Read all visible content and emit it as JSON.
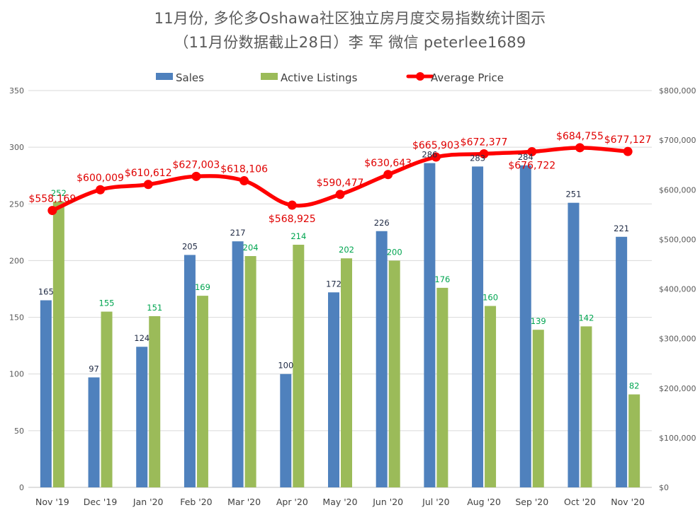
{
  "chart_data": {
    "type": "bar",
    "title_lines": [
      "11月份, 多伦多Oshawa社区独立房月度交易指数统计图示",
      "（11月份数据截止28日）李 军  微信  peterlee1689"
    ],
    "categories": [
      "Nov '19",
      "Dec '19",
      "Jan '20",
      "Feb '20",
      "Mar '20",
      "Apr '20",
      "May '20",
      "Jun '20",
      "Jul '20",
      "Aug '20",
      "Sep '20",
      "Oct '20",
      "Nov '20"
    ],
    "series": [
      {
        "name": "Sales",
        "type": "bar",
        "axis": "left",
        "color": "#4F81BD",
        "label_color": "#1F2A44",
        "values": [
          165,
          97,
          124,
          205,
          217,
          100,
          172,
          226,
          286,
          283,
          284,
          251,
          221
        ],
        "labels": [
          "165",
          "97",
          "124",
          "205",
          "217",
          "100",
          "172",
          "226",
          "286",
          "283",
          "284",
          "251",
          "221"
        ]
      },
      {
        "name": "Active Listings",
        "type": "bar",
        "axis": "left",
        "color": "#9BBB59",
        "label_color": "#00A550",
        "values": [
          252,
          155,
          151,
          169,
          204,
          214,
          202,
          200,
          176,
          160,
          139,
          142,
          82
        ],
        "labels": [
          "252",
          "155",
          "151",
          "169",
          "204",
          "214",
          "202",
          "200",
          "176",
          "160",
          "139",
          "142",
          "82"
        ]
      },
      {
        "name": "Average Price",
        "type": "line",
        "axis": "right",
        "color": "#FF0000",
        "label_color": "#E00000",
        "values": [
          558169,
          600009,
          610612,
          627003,
          618106,
          568925,
          590477,
          630643,
          665903,
          672377,
          676722,
          684755,
          677127
        ],
        "labels": [
          "$558,169",
          "$600,009",
          "$610,612",
          "$627,003",
          "$618,106",
          "$568,925",
          "$590,477",
          "$630,643",
          "$665,903",
          "$672,377",
          "$676,722",
          "$684,755",
          "$677,127"
        ]
      }
    ],
    "y_left": {
      "min": 0,
      "max": 350,
      "ticks": [
        "0",
        "50",
        "100",
        "150",
        "200",
        "250",
        "300",
        "350"
      ]
    },
    "y_right": {
      "min": 0,
      "max": 800000,
      "ticks": [
        "$0",
        "$100,000",
        "$200,000",
        "$300,000",
        "$400,000",
        "$500,000",
        "$600,000",
        "$700,000",
        "$800,000"
      ]
    },
    "grid": true,
    "legend_position": "top"
  }
}
